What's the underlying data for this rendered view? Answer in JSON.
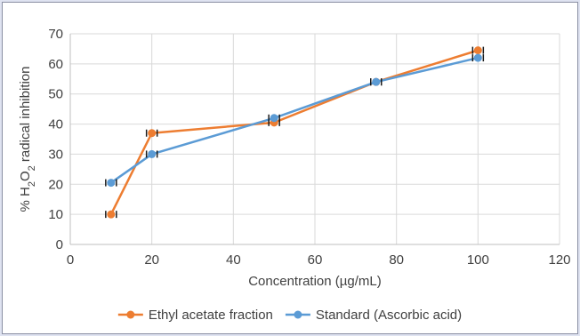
{
  "chart_data": {
    "type": "line",
    "xlabel": "Concentration (µg/mL)",
    "ylabel": {
      "prefix": "% H",
      "sub1": "2",
      "mid": "O",
      "sub2": "2",
      "suffix": " radical inhibition"
    },
    "xlim": [
      0,
      120
    ],
    "ylim": [
      0,
      70
    ],
    "x_ticks": [
      0,
      20,
      40,
      60,
      80,
      100,
      120
    ],
    "y_ticks": [
      0,
      10,
      20,
      30,
      40,
      50,
      60,
      70
    ],
    "grid": true,
    "legend_position": "bottom",
    "series": [
      {
        "name": "Ethyl acetate fraction",
        "color": "#ed7d31",
        "x": [
          10,
          20,
          50,
          75,
          100
        ],
        "y": [
          10,
          37,
          40.5,
          54,
          64.5
        ]
      },
      {
        "name": "Standard (Ascorbic acid)",
        "color": "#5b9bd5",
        "x": [
          10,
          20,
          50,
          75,
          100
        ],
        "y": [
          20.5,
          30,
          42,
          54,
          62
        ]
      }
    ]
  }
}
